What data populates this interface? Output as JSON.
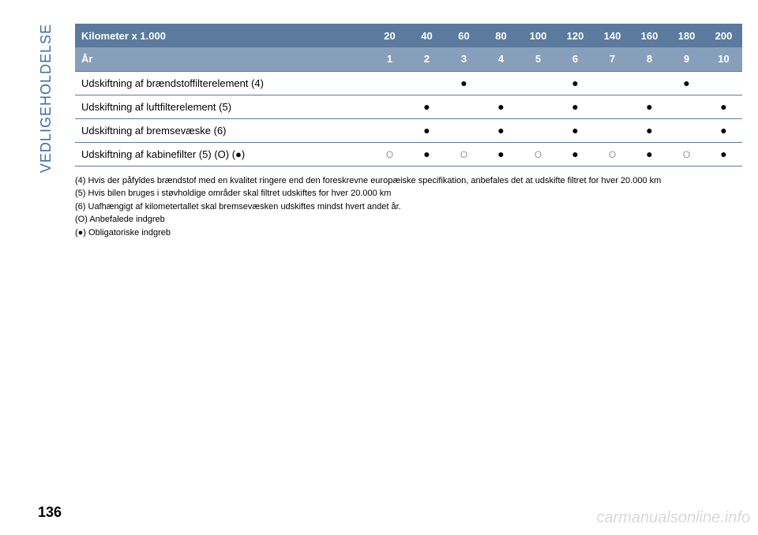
{
  "side_label": "VEDLIGEHOLDELSE",
  "page_number": "136",
  "watermark": "carmanualsonline.info",
  "table": {
    "header_label_1": "Kilometer x 1.000",
    "header_label_2": "År",
    "km_cols": [
      "20",
      "40",
      "60",
      "80",
      "100",
      "120",
      "140",
      "160",
      "180",
      "200"
    ],
    "year_cols": [
      "1",
      "2",
      "3",
      "4",
      "5",
      "6",
      "7",
      "8",
      "9",
      "10"
    ],
    "rows": [
      {
        "label": "Udskiftning af brændstoffilterelement (4)",
        "cells": [
          "",
          "",
          "●",
          "",
          "",
          "●",
          "",
          "",
          "●",
          ""
        ]
      },
      {
        "label": "Udskiftning af luftfilterelement (5)",
        "cells": [
          "",
          "●",
          "",
          "●",
          "",
          "●",
          "",
          "●",
          "",
          "●"
        ]
      },
      {
        "label": "Udskiftning af bremsevæske (6)",
        "cells": [
          "",
          "●",
          "",
          "●",
          "",
          "●",
          "",
          "●",
          "",
          "●"
        ]
      },
      {
        "label": "Udskiftning af kabinefilter (5) (O) (●)",
        "cells": [
          "O",
          "●",
          "O",
          "●",
          "O",
          "●",
          "O",
          "●",
          "O",
          "●"
        ]
      }
    ]
  },
  "footnotes": [
    "(4) Hvis der påfyldes brændstof med en kvalitet ringere end den foreskrevne europæiske specifikation, anbefales det at udskifte filtret for hver 20.000 km",
    "(5) Hvis bilen bruges i støvholdige områder skal filtret udskiftes for hver 20.000 km",
    "(6) Uafhængigt af kilometertallet skal bremsevæsken udskiftes mindst hvert andet år.",
    "(O) Anbefalede indgreb",
    "(●) Obligatoriske indgreb"
  ],
  "colors": {
    "header_bg_1": "#5b7a9d",
    "header_bg_2": "#879fba",
    "side_label_color": "#3b6ea8",
    "border_color": "#5b7a9d",
    "watermark_color": "#d9d9d9"
  }
}
